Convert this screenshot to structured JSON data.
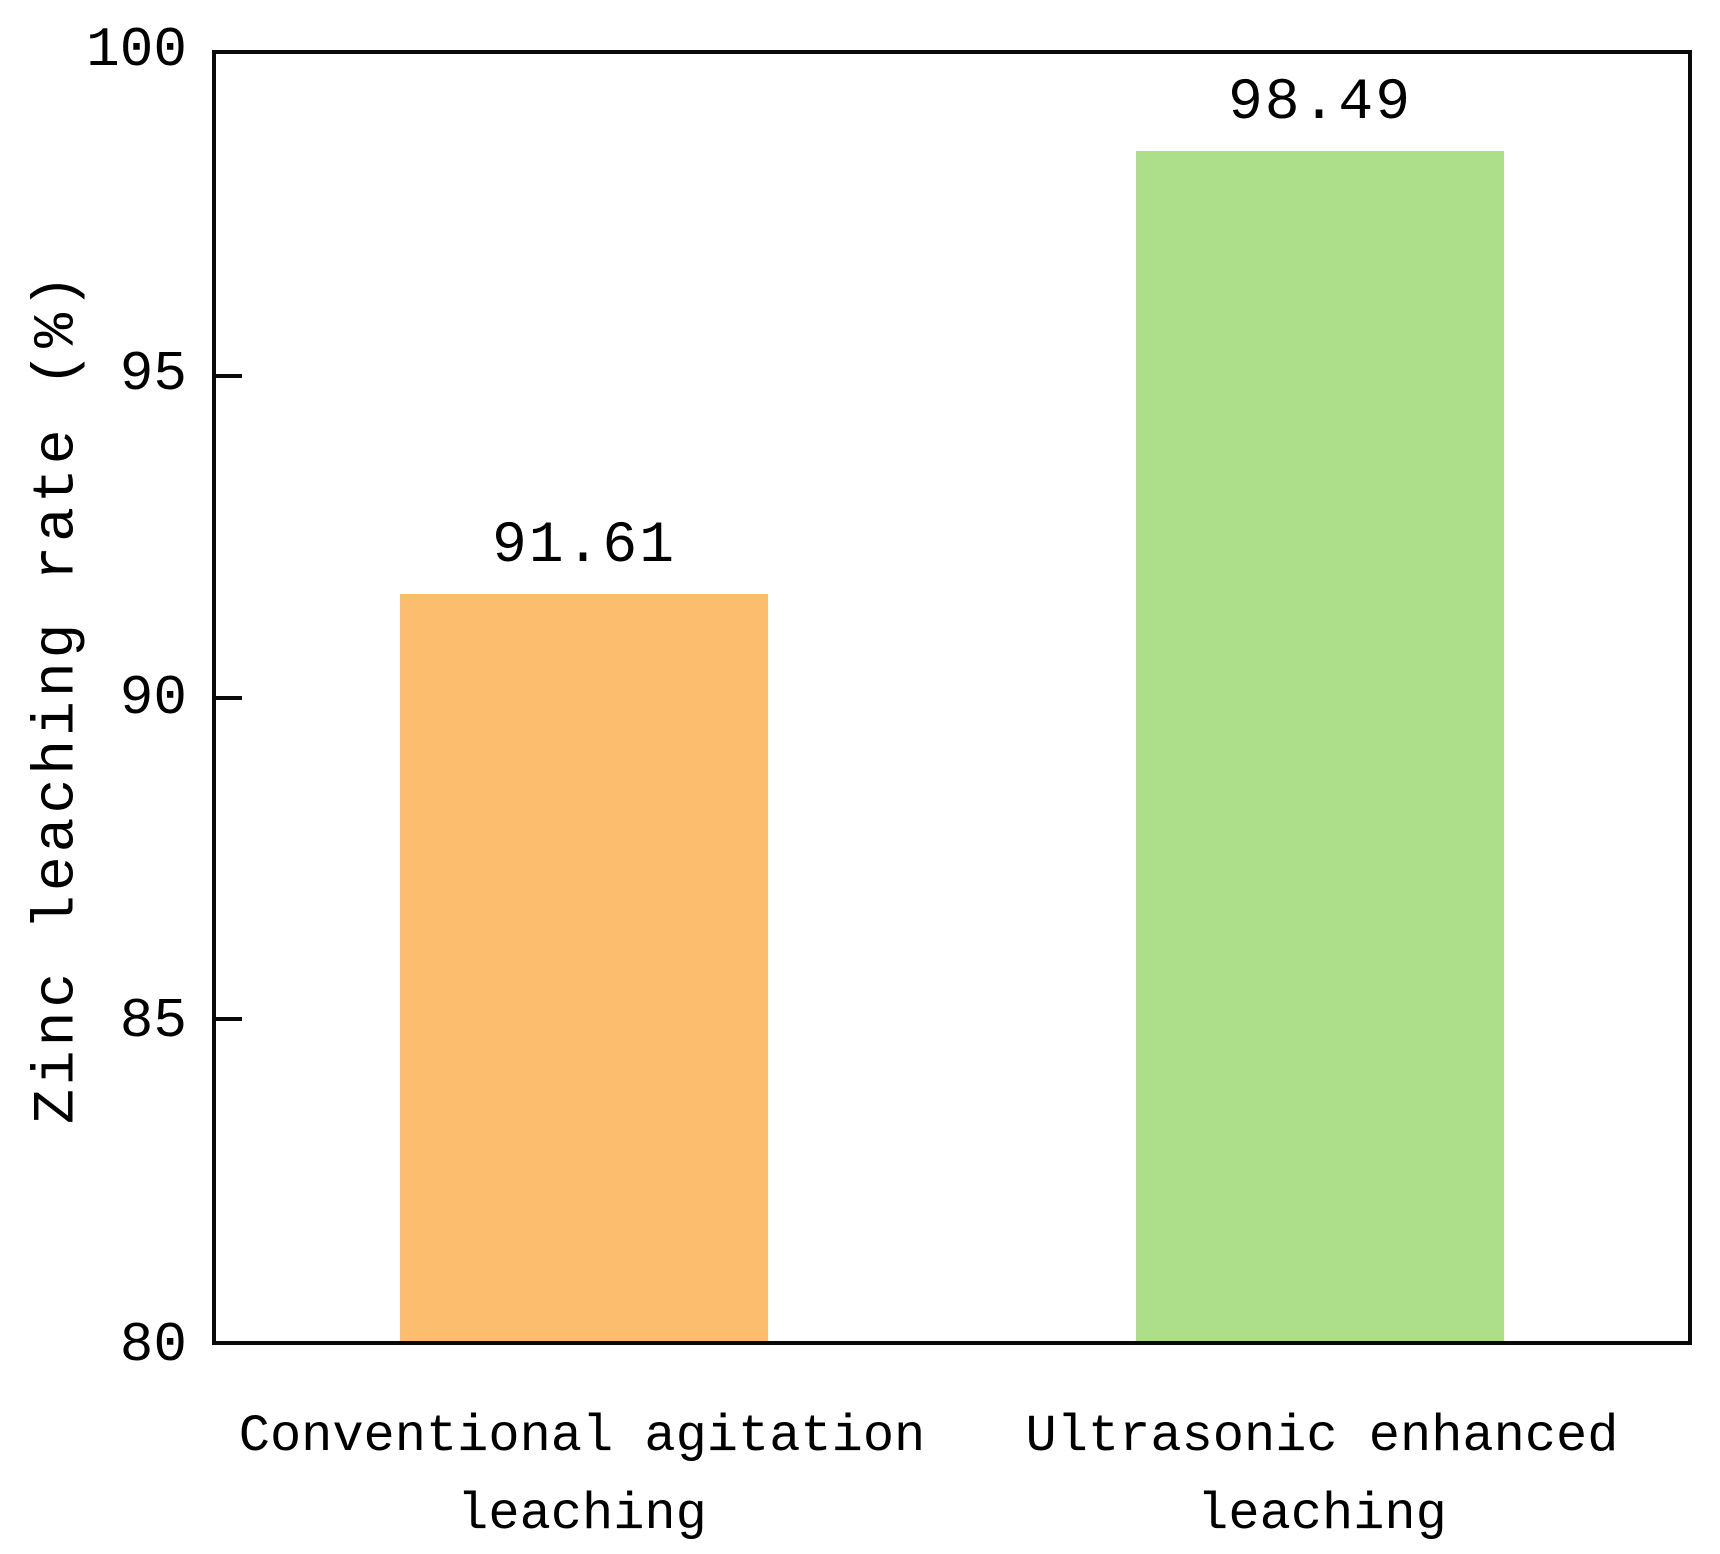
{
  "chart_data": {
    "type": "bar",
    "title": "",
    "categories": [
      "Conventional agitation leaching",
      "Ultrasonic enhanced leaching"
    ],
    "category_lines": [
      [
        "Conventional agitation",
        "leaching"
      ],
      [
        "Ultrasonic enhanced",
        "leaching"
      ]
    ],
    "values": [
      91.61,
      98.49
    ],
    "value_labels": [
      "91.61",
      "98.49"
    ],
    "bar_colors": [
      "#fcbd6e",
      "#addf8a"
    ],
    "xlabel": "",
    "ylabel": "Zinc leaching rate (%)",
    "ylim": [
      80,
      100
    ],
    "yticks": [
      80,
      85,
      90,
      95,
      100
    ],
    "grid": false,
    "legend_position": "none",
    "axis_color": "#0a0a0a",
    "text_color": "#000000",
    "background_color": "#ffffff"
  }
}
